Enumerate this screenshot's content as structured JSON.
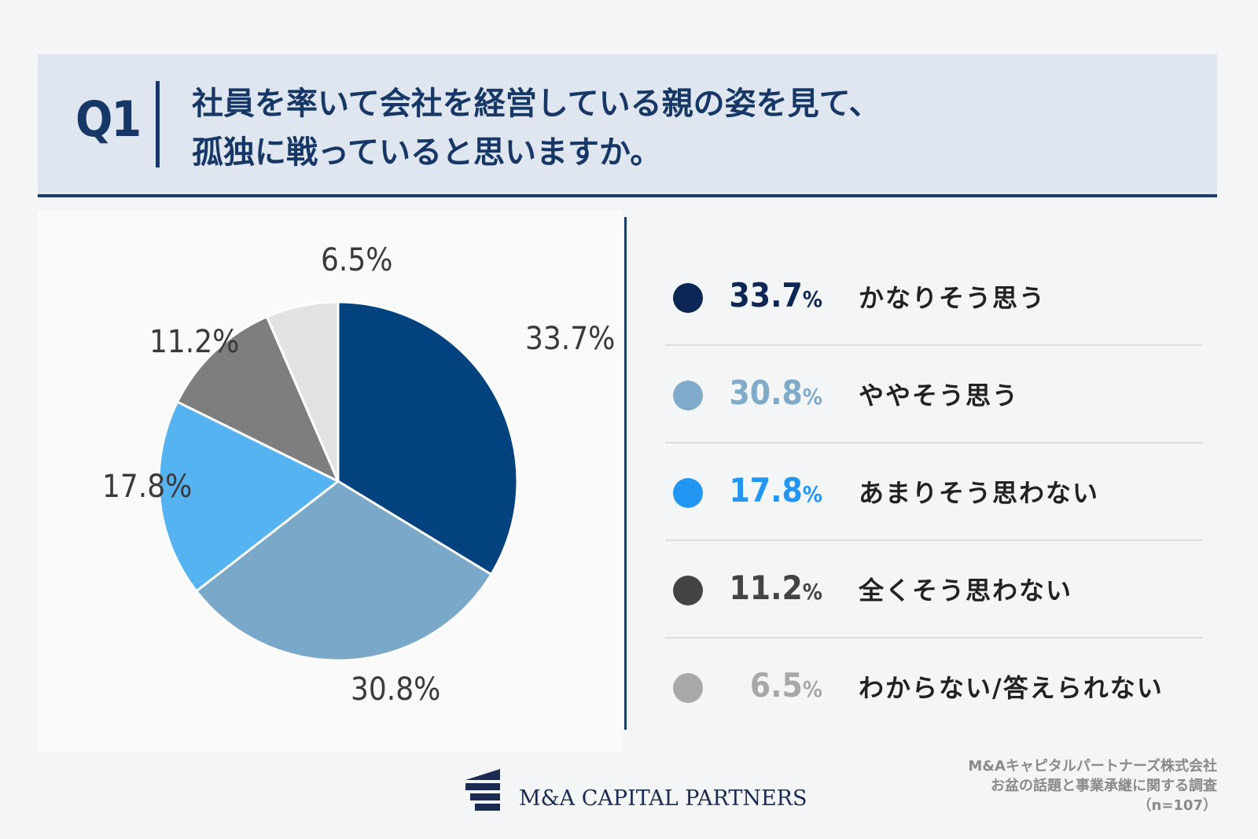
{
  "header": {
    "q_label": "Q1",
    "question_line1": "社員を率いて会社を経営している親の姿を見て、",
    "question_line2": "孤独に戦っていると思いますか。"
  },
  "chart_data": {
    "type": "pie",
    "categories": [
      "かなりそう思う",
      "ややそう思う",
      "あまりそう思わない",
      "全くそう思わない",
      "わからない/答えられない"
    ],
    "values": [
      33.7,
      30.8,
      17.8,
      11.2,
      6.5
    ],
    "slice_labels": [
      "33.7%",
      "30.8%",
      "17.8%",
      "11.2%",
      "6.5%"
    ],
    "colors": [
      "#02427e",
      "#79a8c9",
      "#56b3f2",
      "#7e7e7e",
      "#e2e2e2"
    ]
  },
  "legend": [
    {
      "pct": "33.7",
      "unit": "%",
      "label": "かなりそう思う",
      "dot_color": "#0c2656",
      "text_color": "#0c2656"
    },
    {
      "pct": "30.8",
      "unit": "%",
      "label": "ややそう思う",
      "dot_color": "#80aac9",
      "text_color": "#80aac9"
    },
    {
      "pct": "17.8",
      "unit": "%",
      "label": "あまりそう思わない",
      "dot_color": "#2196f3",
      "text_color": "#2196f3"
    },
    {
      "pct": "11.2",
      "unit": "%",
      "label": "全くそう思わない",
      "dot_color": "#444444",
      "text_color": "#444444"
    },
    {
      "pct": "6.5",
      "unit": "%",
      "label": "わからない/答えられない",
      "dot_color": "#a8a8a8",
      "text_color": "#a8a8a8"
    }
  ],
  "footer": {
    "logo_text": "M&A CAPITAL PARTNERS",
    "source_line1": "M&Aキャピタルパートナーズ株式会社",
    "source_line2": "お盆の話題と事業承継に関する調査",
    "source_line3": "（n=107）"
  }
}
